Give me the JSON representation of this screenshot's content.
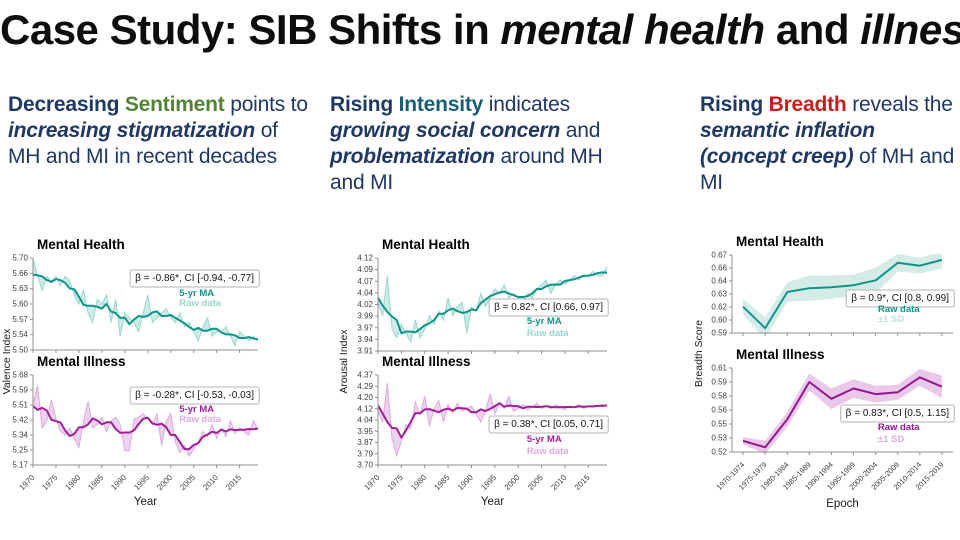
{
  "title": {
    "part1": "Case Study: SIB Shifts in ",
    "italic1": "mental health",
    "part2": " and ",
    "italic2": "illness"
  },
  "headings": [
    {
      "segments": [
        {
          "text": "Decreasing ",
          "bold": true,
          "italic": false,
          "color": "#1F3864"
        },
        {
          "text": "Sentiment",
          "bold": true,
          "italic": false,
          "color": "#538135"
        },
        {
          "text": " points to ",
          "bold": false,
          "italic": false,
          "color": "#1F3864"
        },
        {
          "text": "increasing stigmatization",
          "bold": true,
          "italic": true,
          "color": "#1F3864"
        },
        {
          "text": " of MH and MI in recent decades",
          "bold": false,
          "italic": false,
          "color": "#1F3864"
        }
      ]
    },
    {
      "segments": [
        {
          "text": "Rising ",
          "bold": true,
          "italic": false,
          "color": "#1F3864"
        },
        {
          "text": "Intensity",
          "bold": true,
          "italic": false,
          "color": "#1A5E74"
        },
        {
          "text": " indicates ",
          "bold": false,
          "italic": false,
          "color": "#1F3864"
        },
        {
          "text": "growing social concern",
          "bold": true,
          "italic": true,
          "color": "#1F3864"
        },
        {
          "text": " and ",
          "bold": false,
          "italic": false,
          "color": "#1F3864"
        },
        {
          "text": "problematization",
          "bold": true,
          "italic": true,
          "color": "#1F3864"
        },
        {
          "text": " around MH and MI",
          "bold": false,
          "italic": false,
          "color": "#1F3864"
        }
      ]
    },
    {
      "segments": [
        {
          "text": "Rising ",
          "bold": true,
          "italic": false,
          "color": "#1F3864"
        },
        {
          "text": "Breadth",
          "bold": true,
          "italic": false,
          "color": "#C41E1E"
        },
        {
          "text": " reveals the ",
          "bold": false,
          "italic": false,
          "color": "#1F3864"
        },
        {
          "text": "semantic inflation (concept creep)",
          "bold": true,
          "italic": true,
          "color": "#1F3864"
        },
        {
          "text": " of MH and MI",
          "bold": false,
          "italic": false,
          "color": "#1F3864"
        }
      ]
    }
  ],
  "chart_data": [
    {
      "type": "line",
      "xlabel": "Year",
      "ylabel": "Valence Index",
      "xticks": [
        "1970",
        "1975",
        "1980",
        "1985",
        "1990",
        "1995",
        "2000",
        "2005",
        "2010",
        "2015"
      ],
      "x_range": [
        1970,
        2019
      ],
      "panels": [
        {
          "title": "Mental Health",
          "ylim": [
            5.5,
            5.7
          ],
          "yticks": [
            "5.70",
            "5.66",
            "5.63",
            "5.60",
            "5.57",
            "5.54",
            "5.50"
          ],
          "annotation": "β = -0.86*, CI [-0.94, -0.77]",
          "legend": [
            "5-yr MA",
            "Raw data"
          ],
          "line_color": "#0E9488",
          "raw_color": "#9AD5CE",
          "ma_window": 5,
          "raw": [
            5.7,
            5.66,
            5.63,
            5.66,
            5.65,
            5.66,
            5.64,
            5.66,
            5.65,
            5.62,
            5.6,
            5.63,
            5.58,
            5.56,
            5.61,
            5.6,
            5.62,
            5.56,
            5.61,
            5.53,
            5.58,
            5.57,
            5.56,
            5.54,
            5.58,
            5.62,
            5.56,
            5.57,
            5.58,
            5.59,
            5.57,
            5.56,
            5.58,
            5.55,
            5.56,
            5.54,
            5.52,
            5.55,
            5.57,
            5.53,
            5.54,
            5.54,
            5.55,
            5.53,
            5.51,
            5.54,
            5.53,
            5.52,
            5.53,
            5.52
          ]
        },
        {
          "title": "Mental Illness",
          "ylim": [
            5.17,
            5.68
          ],
          "yticks": [
            "5.68",
            "5.59",
            "5.51",
            "5.42",
            "5.34",
            "5.25",
            "5.17"
          ],
          "annotation": "β = -0.28*, CI [-0.53, -0.03]",
          "legend": [
            "5-yr MA",
            "Raw data"
          ],
          "line_color": "#A21E9C",
          "raw_color": "#DCA9DD",
          "ma_window": 5,
          "raw": [
            5.51,
            5.62,
            5.38,
            5.42,
            5.54,
            5.43,
            5.36,
            5.34,
            5.38,
            5.32,
            5.27,
            5.42,
            5.53,
            5.38,
            5.4,
            5.44,
            5.36,
            5.42,
            5.44,
            5.4,
            5.25,
            5.25,
            5.43,
            5.44,
            5.46,
            5.43,
            5.4,
            5.46,
            5.28,
            5.42,
            5.46,
            5.3,
            5.24,
            5.28,
            5.22,
            5.26,
            5.3,
            5.36,
            5.33,
            5.4,
            5.32,
            5.38,
            5.33,
            5.42,
            5.35,
            5.38,
            5.36,
            5.34,
            5.42,
            5.37
          ]
        }
      ]
    },
    {
      "type": "line",
      "xlabel": "Year",
      "ylabel": "Arousal Index",
      "xticks": [
        "1970",
        "1975",
        "1980",
        "1985",
        "1990",
        "1995",
        "2000",
        "2005",
        "2010",
        "2015"
      ],
      "x_range": [
        1970,
        2019
      ],
      "panels": [
        {
          "title": "Mental Health",
          "ylim": [
            3.91,
            4.12
          ],
          "yticks": [
            "4.12",
            "4.09",
            "4.07",
            "4.04",
            "4.02",
            "3.99",
            "3.97",
            "3.94",
            "3.91"
          ],
          "annotation": "β = 0.82*, CI [0.66, 0.97]",
          "legend": [
            "5-yr MA",
            "Raw data"
          ],
          "line_color": "#0E9488",
          "raw_color": "#9AD5CE",
          "ma_window": 5,
          "raw": [
            4.02,
            3.99,
            4.08,
            3.96,
            3.94,
            3.97,
            3.95,
            3.93,
            3.98,
            3.94,
            3.96,
            3.99,
            3.97,
            4.0,
            3.98,
            4.03,
            3.99,
            4.01,
            4.02,
            3.95,
            4.01,
            4.0,
            4.04,
            4.01,
            4.03,
            4.05,
            4.04,
            4.06,
            4.03,
            4.04,
            4.03,
            4.02,
            4.04,
            4.03,
            4.05,
            4.06,
            4.07,
            4.04,
            4.06,
            4.07,
            4.06,
            4.07,
            4.08,
            4.07,
            4.08,
            4.08,
            4.09,
            4.08,
            4.08,
            4.1
          ]
        },
        {
          "title": "Mental Illness",
          "ylim": [
            3.7,
            4.37
          ],
          "yticks": [
            "4.37",
            "4.29",
            "4.20",
            "4.12",
            "4.04",
            "3.95",
            "3.87",
            "3.79",
            "3.70"
          ],
          "annotation": "β = 0.38*, CI [0.05, 0.71]",
          "legend": [
            "5-yr MA",
            "Raw data"
          ],
          "line_color": "#A21E9C",
          "raw_color": "#DCA9DD",
          "ma_window": 5,
          "raw": [
            4.1,
            4.02,
            4.31,
            3.9,
            3.77,
            3.88,
            4.0,
            3.97,
            4.17,
            4.08,
            4.21,
            3.99,
            4.12,
            4.18,
            4.02,
            4.15,
            4.09,
            4.16,
            4.1,
            4.12,
            4.14,
            4.08,
            4.02,
            4.1,
            4.23,
            4.08,
            4.16,
            4.12,
            4.21,
            4.1,
            4.12,
            4.15,
            4.11,
            4.13,
            4.16,
            4.12,
            4.14,
            4.12,
            4.15,
            4.13,
            4.11,
            4.14,
            4.13,
            4.15,
            4.12,
            4.14,
            4.13,
            4.14,
            4.15,
            4.14
          ]
        }
      ]
    },
    {
      "type": "line",
      "xlabel": "Epoch",
      "ylabel": "Breadth Score",
      "xticks": [
        "1970-1974",
        "1975-1979",
        "1980-1984",
        "1985-1989",
        "1990-1994",
        "1995-1999",
        "2000-2004",
        "2005-2009",
        "2010-2014",
        "2015-2019"
      ],
      "panels": [
        {
          "title": "Mental Health",
          "ylim": [
            0.59,
            0.67
          ],
          "yticks": [
            "0.67",
            "0.66",
            "0.64",
            "0.63",
            "0.62",
            "0.60",
            "0.59"
          ],
          "annotation": "β = 0.9*, CI [0.8, 0.99]",
          "legend": [
            "Raw data",
            "±1 SD"
          ],
          "line_color": "#0E9488",
          "band_color": "#BFE0DB",
          "values": [
            0.617,
            0.595,
            0.632,
            0.636,
            0.637,
            0.639,
            0.644,
            0.662,
            0.659,
            0.665
          ],
          "sd": [
            0.008,
            0.011,
            0.01,
            0.013,
            0.012,
            0.011,
            0.013,
            0.009,
            0.008,
            0.009
          ]
        },
        {
          "title": "Mental Illness",
          "ylim": [
            0.52,
            0.61
          ],
          "yticks": [
            "0.61",
            "0.59",
            "0.58",
            "0.56",
            "0.55",
            "0.53",
            "0.52"
          ],
          "annotation": "β = 0.83*, CI [0.5, 1.15]",
          "legend": [
            "Raw data",
            "±1 SD"
          ],
          "line_color": "#93188F",
          "band_color": "#DFABDF",
          "values": [
            0.532,
            0.525,
            0.555,
            0.595,
            0.577,
            0.588,
            0.582,
            0.584,
            0.6,
            0.59
          ],
          "sd": [
            0.004,
            0.007,
            0.008,
            0.009,
            0.011,
            0.01,
            0.009,
            0.008,
            0.009,
            0.012
          ]
        }
      ]
    }
  ]
}
